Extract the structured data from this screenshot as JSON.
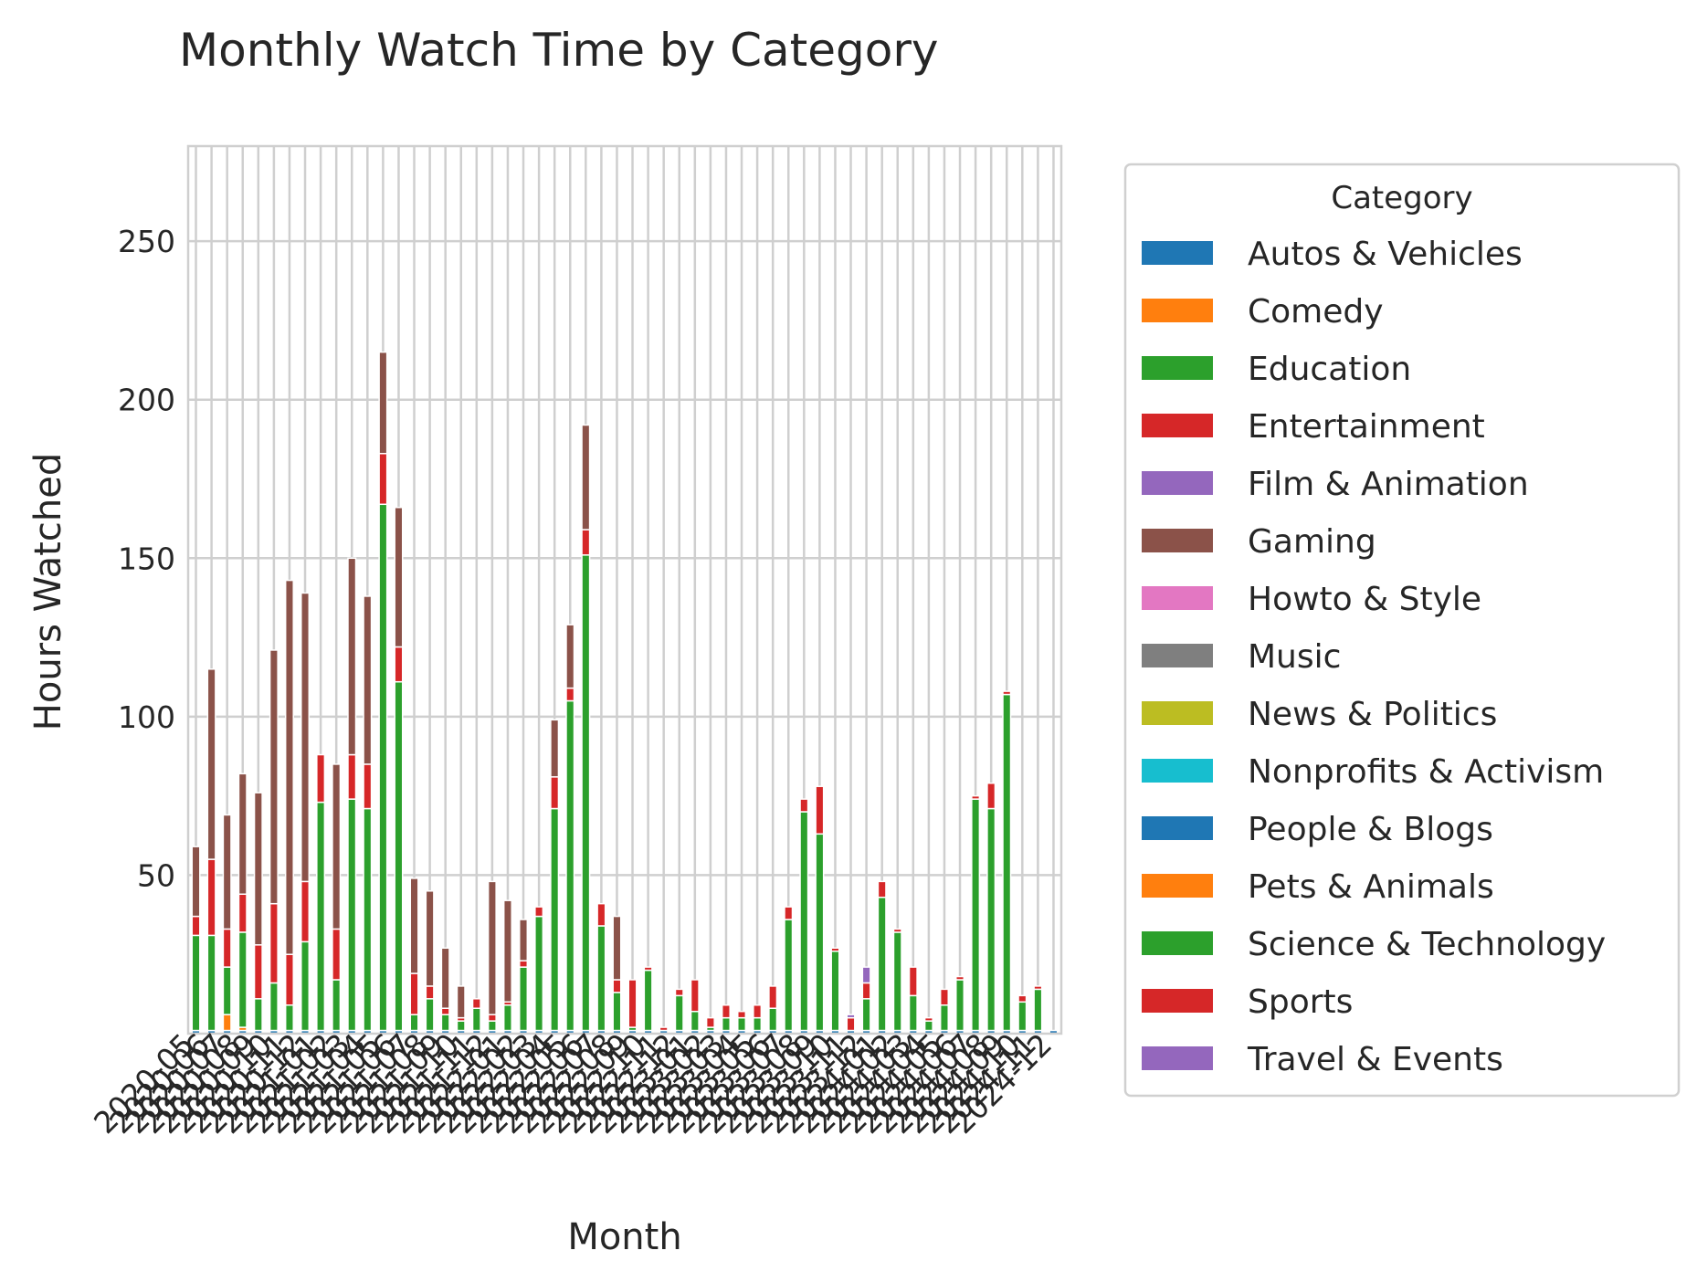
{
  "chart_data": {
    "type": "bar",
    "stacked": true,
    "title": "Monthly Watch Time by Category",
    "xlabel": "Month",
    "ylabel": "Hours Watched",
    "ylim": [
      0,
      280
    ],
    "yticks": [
      50,
      100,
      150,
      200,
      250
    ],
    "grid": true,
    "legend": {
      "title": "Category",
      "placement": "outside-right"
    },
    "categories": [
      "2020-05",
      "2020-06",
      "2020-07",
      "2020-08",
      "2020-09",
      "2020-10",
      "2020-11",
      "2020-12",
      "2021-01",
      "2021-02",
      "2021-03",
      "2021-04",
      "2021-05",
      "2021-06",
      "2021-07",
      "2021-08",
      "2021-09",
      "2021-10",
      "2021-11",
      "2021-12",
      "2022-01",
      "2022-02",
      "2022-03",
      "2022-04",
      "2022-05",
      "2022-06",
      "2022-07",
      "2022-08",
      "2022-09",
      "2022-10",
      "2022-11",
      "2022-12",
      "2023-01",
      "2023-02",
      "2023-03",
      "2023-04",
      "2023-05",
      "2023-06",
      "2023-07",
      "2023-08",
      "2023-09",
      "2023-10",
      "2023-11",
      "2023-12",
      "2024-01",
      "2024-02",
      "2024-03",
      "2024-04",
      "2024-05",
      "2024-06",
      "2024-07",
      "2024-08",
      "2024-09",
      "2024-10",
      "2024-11",
      "2024-12"
    ],
    "visible_tick_labels": [
      "2020-05",
      "2024-11"
    ],
    "series": [
      {
        "name": "Autos & Vehicles",
        "color": "#1f77b4",
        "values": [
          1,
          1,
          1,
          1,
          1,
          1,
          1,
          1,
          1,
          1,
          1,
          1,
          1,
          1,
          1,
          1,
          1,
          1,
          1,
          1,
          1,
          1,
          1,
          1,
          1,
          1,
          1,
          1,
          1,
          1,
          1,
          1,
          1,
          1,
          1,
          1,
          1,
          1,
          1,
          1,
          1,
          1,
          1,
          1,
          1,
          1,
          1,
          1,
          1,
          1,
          1,
          1,
          1,
          1,
          1,
          1
        ]
      },
      {
        "name": "Comedy",
        "color": "#ff7f0e",
        "values": [
          0,
          0,
          5,
          1,
          0,
          0,
          0,
          0,
          0,
          0,
          0,
          0,
          0,
          0,
          0,
          0,
          0,
          0,
          0,
          0,
          0,
          0,
          0,
          0,
          0,
          0,
          0,
          0,
          0,
          0,
          0,
          0,
          0,
          0,
          0,
          0,
          0,
          0,
          0,
          0,
          0,
          0,
          0,
          0,
          0,
          0,
          0,
          0,
          0,
          0,
          0,
          0,
          0,
          0,
          0,
          0
        ]
      },
      {
        "name": "Education",
        "color": "#2ca02c",
        "values": [
          30,
          30,
          15,
          30,
          10,
          15,
          8,
          28,
          72,
          16,
          73,
          70,
          166,
          110,
          5,
          10,
          5,
          3,
          7,
          3,
          8,
          20,
          36,
          70,
          104,
          150,
          33,
          12,
          1,
          19,
          0,
          11,
          6,
          1,
          4,
          4,
          4,
          7,
          35,
          69,
          62,
          25,
          0,
          10,
          42,
          31,
          11,
          3,
          8,
          16,
          73,
          70,
          106,
          9,
          13,
          0
        ]
      },
      {
        "name": "Entertainment",
        "color": "#d62728",
        "values": [
          6,
          24,
          12,
          12,
          17,
          25,
          16,
          19,
          15,
          16,
          14,
          14,
          16,
          11,
          13,
          4,
          2,
          1,
          3,
          2,
          1,
          2,
          3,
          10,
          4,
          8,
          7,
          4,
          15,
          1,
          1,
          2,
          10,
          3,
          4,
          2,
          4,
          7,
          4,
          4,
          15,
          1,
          4,
          5,
          5,
          1,
          9,
          1,
          5,
          1,
          1,
          8,
          1,
          2,
          1,
          0
        ]
      },
      {
        "name": "Film & Animation",
        "color": "#9467bd",
        "values": [
          0,
          0,
          0,
          0,
          0,
          0,
          0,
          0,
          0,
          0,
          0,
          0,
          0,
          0,
          0,
          0,
          0,
          0,
          0,
          0,
          0,
          0,
          0,
          0,
          0,
          0,
          0,
          0,
          0,
          0,
          0,
          0,
          0,
          0,
          0,
          0,
          0,
          0,
          0,
          0,
          0,
          0,
          1,
          5,
          0,
          0,
          0,
          0,
          0,
          0,
          0,
          0,
          0,
          0,
          0,
          0
        ]
      },
      {
        "name": "Gaming",
        "color": "#8b5249",
        "values": [
          22,
          60,
          36,
          38,
          48,
          80,
          118,
          91,
          0,
          52,
          62,
          53,
          32,
          44,
          30,
          30,
          19,
          10,
          0,
          42,
          32,
          13,
          0,
          18,
          20,
          33,
          0,
          20,
          0,
          0,
          0,
          0,
          0,
          0,
          0,
          0,
          0,
          0,
          0,
          0,
          0,
          0,
          0,
          0,
          0,
          0,
          0,
          0,
          0,
          0,
          0,
          0,
          0,
          0,
          0,
          0
        ]
      },
      {
        "name": "Howto & Style",
        "color": "#e377c2",
        "values": [
          0,
          0,
          0,
          0,
          0,
          0,
          0,
          0,
          0,
          0,
          0,
          0,
          0,
          0,
          0,
          0,
          0,
          0,
          0,
          0,
          0,
          0,
          0,
          0,
          0,
          0,
          0,
          0,
          0,
          0,
          0,
          0,
          0,
          0,
          0,
          0,
          0,
          0,
          0,
          0,
          0,
          0,
          0,
          0,
          0,
          0,
          0,
          0,
          0,
          0,
          0,
          0,
          0,
          0,
          0,
          0
        ]
      },
      {
        "name": "Music",
        "color": "#7f7f7f",
        "values": [
          0,
          0,
          0,
          0,
          0,
          0,
          0,
          0,
          0,
          0,
          0,
          0,
          0,
          0,
          0,
          0,
          0,
          0,
          0,
          0,
          0,
          0,
          0,
          0,
          0,
          0,
          0,
          0,
          0,
          0,
          0,
          0,
          0,
          0,
          0,
          0,
          0,
          0,
          0,
          0,
          0,
          0,
          0,
          0,
          0,
          0,
          0,
          0,
          0,
          0,
          0,
          0,
          0,
          0,
          0,
          0
        ]
      },
      {
        "name": "News & Politics",
        "color": "#bcbd22",
        "values": [
          0,
          0,
          0,
          0,
          0,
          0,
          0,
          0,
          0,
          0,
          0,
          0,
          0,
          0,
          0,
          0,
          0,
          0,
          0,
          0,
          0,
          0,
          0,
          0,
          0,
          0,
          0,
          0,
          0,
          0,
          0,
          0,
          0,
          0,
          0,
          0,
          0,
          0,
          0,
          0,
          0,
          0,
          0,
          0,
          0,
          0,
          0,
          0,
          0,
          0,
          0,
          0,
          0,
          0,
          0,
          0
        ]
      },
      {
        "name": "Nonprofits & Activism",
        "color": "#17becf",
        "values": [
          0,
          0,
          0,
          0,
          0,
          0,
          0,
          0,
          0,
          0,
          0,
          0,
          0,
          0,
          0,
          0,
          0,
          0,
          0,
          0,
          0,
          0,
          0,
          0,
          0,
          0,
          0,
          0,
          0,
          0,
          0,
          0,
          0,
          0,
          0,
          0,
          0,
          0,
          0,
          0,
          0,
          0,
          0,
          0,
          0,
          0,
          0,
          0,
          0,
          0,
          0,
          0,
          0,
          0,
          0,
          0
        ]
      },
      {
        "name": "People & Blogs",
        "color": "#1f77b4",
        "values": [
          0,
          0,
          0,
          0,
          0,
          0,
          0,
          0,
          0,
          0,
          0,
          0,
          0,
          0,
          0,
          0,
          0,
          0,
          0,
          0,
          0,
          0,
          0,
          0,
          0,
          0,
          0,
          0,
          0,
          0,
          0,
          0,
          0,
          0,
          0,
          0,
          0,
          0,
          0,
          0,
          0,
          0,
          0,
          0,
          0,
          0,
          0,
          0,
          0,
          0,
          0,
          0,
          0,
          0,
          0,
          0
        ]
      },
      {
        "name": "Pets & Animals",
        "color": "#ff7f0e",
        "values": [
          0,
          0,
          0,
          0,
          0,
          0,
          0,
          0,
          0,
          0,
          0,
          0,
          0,
          0,
          0,
          0,
          0,
          0,
          0,
          0,
          0,
          0,
          0,
          0,
          0,
          0,
          0,
          0,
          0,
          0,
          0,
          0,
          0,
          0,
          0,
          0,
          0,
          0,
          0,
          0,
          0,
          0,
          0,
          0,
          0,
          0,
          0,
          0,
          0,
          0,
          0,
          0,
          0,
          0,
          0,
          0
        ]
      },
      {
        "name": "Science & Technology",
        "color": "#2ca02c",
        "values": [
          0,
          0,
          0,
          0,
          0,
          0,
          0,
          0,
          0,
          0,
          0,
          0,
          0,
          0,
          0,
          0,
          0,
          0,
          0,
          0,
          0,
          0,
          0,
          0,
          0,
          0,
          0,
          0,
          0,
          0,
          0,
          0,
          0,
          0,
          0,
          0,
          0,
          0,
          0,
          0,
          0,
          0,
          0,
          0,
          0,
          0,
          0,
          0,
          0,
          0,
          0,
          0,
          0,
          0,
          0,
          0
        ]
      },
      {
        "name": "Sports",
        "color": "#d62728",
        "values": [
          0,
          0,
          0,
          0,
          0,
          0,
          0,
          0,
          0,
          0,
          0,
          0,
          0,
          0,
          0,
          0,
          0,
          0,
          0,
          0,
          0,
          0,
          0,
          0,
          0,
          0,
          0,
          0,
          0,
          0,
          0,
          0,
          0,
          0,
          0,
          0,
          0,
          0,
          0,
          0,
          0,
          0,
          0,
          0,
          0,
          0,
          0,
          0,
          0,
          0,
          0,
          0,
          0,
          0,
          0,
          0
        ]
      },
      {
        "name": "Travel & Events",
        "color": "#9467bd",
        "values": [
          0,
          0,
          0,
          0,
          0,
          0,
          0,
          0,
          0,
          0,
          0,
          0,
          0,
          0,
          0,
          0,
          0,
          0,
          0,
          0,
          0,
          0,
          0,
          0,
          0,
          0,
          0,
          0,
          0,
          0,
          0,
          0,
          0,
          0,
          0,
          0,
          0,
          0,
          0,
          0,
          0,
          0,
          0,
          0,
          0,
          0,
          0,
          0,
          0,
          0,
          0,
          0,
          0,
          0,
          0,
          0
        ]
      }
    ]
  }
}
